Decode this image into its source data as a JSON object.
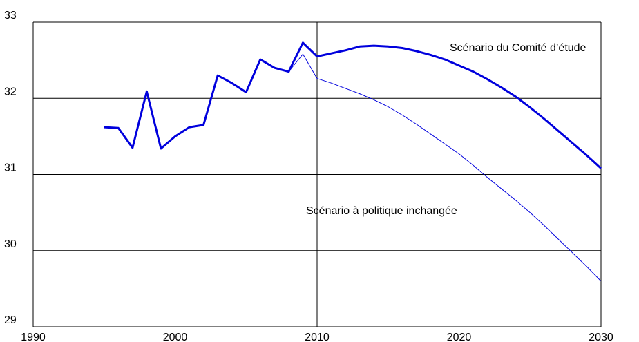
{
  "chart_data": {
    "type": "line",
    "annotations": [
      "Scénario du Comité d’étude",
      "Scénario à politique inchangée"
    ],
    "x": [
      1995,
      1996,
      1997,
      1998,
      1999,
      2000,
      2001,
      2002,
      2003,
      2004,
      2005,
      2006,
      2007,
      2008,
      2009,
      2010,
      2011,
      2012,
      2013,
      2014,
      2015,
      2016,
      2017,
      2018,
      2019,
      2020,
      2021,
      2022,
      2023,
      2024,
      2025,
      2026,
      2027,
      2028,
      2029,
      2030
    ],
    "series": [
      {
        "color": "#0000dd",
        "values": [
          31.62,
          31.61,
          31.35,
          32.09,
          31.34,
          31.5,
          31.62,
          31.65,
          32.3,
          32.2,
          32.08,
          32.51,
          32.4,
          32.35,
          32.73,
          32.55,
          32.59,
          32.63,
          32.68,
          32.69,
          32.68,
          32.66,
          32.62,
          32.57,
          32.51,
          32.43,
          32.35,
          32.25,
          32.14,
          32.02,
          31.88,
          31.73,
          31.57,
          31.41,
          31.25,
          31.08
        ]
      },
      {
        "color": "#0000dd",
        "values": [
          31.62,
          31.61,
          31.35,
          32.09,
          31.34,
          31.5,
          31.62,
          31.65,
          32.3,
          32.2,
          32.08,
          32.51,
          32.4,
          32.35,
          32.58,
          32.26,
          32.2,
          32.13,
          32.06,
          31.98,
          31.89,
          31.78,
          31.66,
          31.53,
          31.4,
          31.27,
          31.12,
          30.96,
          30.81,
          30.66,
          30.5,
          30.33,
          30.15,
          29.97,
          29.79,
          29.6
        ]
      }
    ],
    "line_widths": [
      3,
      1
    ],
    "xlim": [
      1990,
      2030
    ],
    "xticks": [
      1990,
      2000,
      2010,
      2020,
      2030
    ],
    "ylim": [
      29,
      33
    ],
    "yticks": [
      29,
      30,
      31,
      32,
      33
    ],
    "grid": true
  }
}
